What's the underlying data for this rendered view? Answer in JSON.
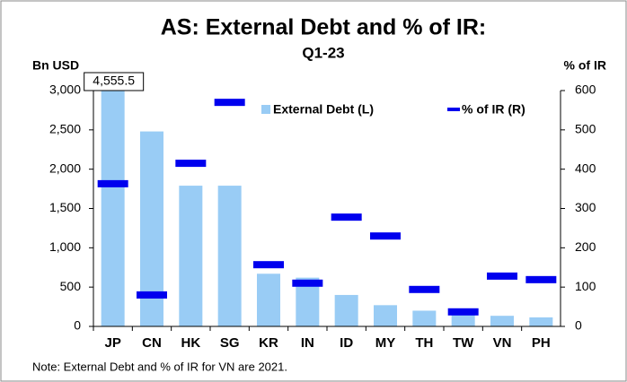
{
  "chart_data": {
    "type": "bar",
    "title": "AS: External Debt and % of IR:",
    "subtitle": "Q1-23",
    "y_label": "Bn USD",
    "y2_label": "% of IR",
    "note": "Note: External Debt and % of IR for VN are 2021.",
    "categories": [
      "JP",
      "CN",
      "HK",
      "SG",
      "KR",
      "IN",
      "ID",
      "MY",
      "TH",
      "TW",
      "VN",
      "PH"
    ],
    "series": [
      {
        "name": "External Debt (L)",
        "color": "#99ccf5",
        "type": "bar",
        "values": [
          4555.5,
          2480,
          1790,
          1790,
          670,
          620,
          400,
          270,
          200,
          170,
          135,
          115
        ],
        "value_labels": [
          "4,555.5",
          null,
          null,
          null,
          null,
          null,
          null,
          null,
          null,
          null,
          null,
          null
        ]
      },
      {
        "name": "% of IR (R)",
        "color": "#0000ee",
        "type": "dash",
        "axis": "y2",
        "values": [
          363,
          80,
          415,
          570,
          157,
          110,
          278,
          230,
          94,
          37,
          128,
          119
        ]
      }
    ],
    "ylim": [
      0,
      3000
    ],
    "yticks": [
      0,
      500,
      {
        "value": 1000,
        "label": "1,000"
      },
      {
        "value": 1500,
        "label": "1,500"
      },
      {
        "value": 2000,
        "label": "2,000"
      },
      {
        "value": 2500,
        "label": "2,500"
      },
      {
        "value": 3000,
        "label": "3,000"
      }
    ],
    "y2lim": [
      0,
      600
    ],
    "y2ticks": [
      0,
      100,
      200,
      300,
      400,
      500,
      600
    ],
    "legend": "top-right"
  }
}
